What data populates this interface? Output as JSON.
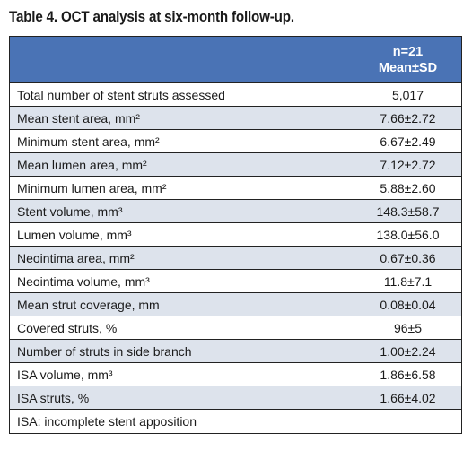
{
  "title": "Table 4. OCT analysis at six-month follow-up.",
  "header": {
    "n_label": "n=21",
    "stat_label": "Mean±SD"
  },
  "rows": [
    {
      "label": "Total number of stent struts assessed",
      "value": "5,017"
    },
    {
      "label": "Mean stent area, mm²",
      "value": "7.66±2.72"
    },
    {
      "label": "Minimum stent area, mm²",
      "value": "6.67±2.49"
    },
    {
      "label": "Mean lumen area, mm²",
      "value": "7.12±2.72"
    },
    {
      "label": "Minimum lumen area, mm²",
      "value": "5.88±2.60"
    },
    {
      "label": "Stent volume, mm³",
      "value": "148.3±58.7"
    },
    {
      "label": "Lumen volume, mm³",
      "value": "138.0±56.0"
    },
    {
      "label": "Neointima area, mm²",
      "value": "0.67±0.36"
    },
    {
      "label": "Neointima volume, mm³",
      "value": "11.8±7.1"
    },
    {
      "label": "Mean strut coverage, mm",
      "value": "0.08±0.04"
    },
    {
      "label": "Covered struts, %",
      "value": "96±5"
    },
    {
      "label": "Number of struts in side branch",
      "value": "1.00±2.24"
    },
    {
      "label": "ISA volume, mm³",
      "value": "1.86±6.58"
    },
    {
      "label": "ISA struts, %",
      "value": "1.66±4.02"
    }
  ],
  "footnote": "ISA: incomplete stent apposition"
}
